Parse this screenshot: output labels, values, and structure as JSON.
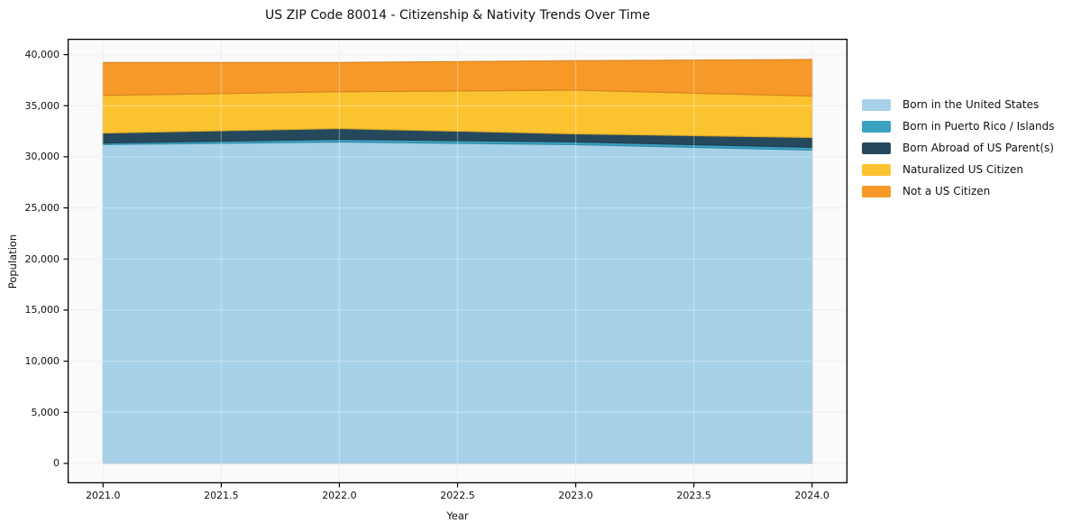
{
  "chart_data": {
    "type": "area",
    "stacked": true,
    "title": "US ZIP Code 80014 - Citizenship & Nativity Trends Over Time",
    "xlabel": "Year",
    "ylabel": "Population",
    "x": [
      2021,
      2022,
      2023,
      2024
    ],
    "series": [
      {
        "name": "Born in the United States",
        "color": "#a6d1e8",
        "values": [
          31200,
          31450,
          31190,
          30660
        ]
      },
      {
        "name": "Born in Puerto Rico / Islands",
        "color": "#3ba1c1",
        "values": [
          150,
          260,
          265,
          265
        ]
      },
      {
        "name": "Born Abroad of US Parent(s)",
        "color": "#26485c",
        "values": [
          980,
          1060,
          795,
          970
        ]
      },
      {
        "name": "Naturalized US Citizen",
        "color": "#fcc330",
        "values": [
          3680,
          3600,
          4270,
          4040
        ]
      },
      {
        "name": "Not a US Citizen",
        "color": "#f79928",
        "values": [
          3210,
          2860,
          2890,
          3590
        ]
      }
    ],
    "totals": [
      39220,
      39230,
      39410,
      39525
    ],
    "xlim": [
      2020.85,
      2024.15
    ],
    "ylim": [
      -1950,
      41550
    ],
    "xticks": {
      "values": [
        2021.0,
        2021.5,
        2022.0,
        2022.5,
        2023.0,
        2023.5,
        2024.0
      ],
      "labels": [
        "2021.0",
        "2021.5",
        "2022.0",
        "2022.5",
        "2023.0",
        "2023.5",
        "2024.0"
      ]
    },
    "yticks": {
      "values": [
        0,
        5000,
        10000,
        15000,
        20000,
        25000,
        30000,
        35000,
        40000
      ],
      "labels": [
        "0",
        "5,000",
        "10,000",
        "15,000",
        "20,000",
        "25,000",
        "30,000",
        "35,000",
        "40,000"
      ]
    },
    "grid": true,
    "legend_position": "right-of-plot",
    "style": {
      "plot_background": "#fafafa",
      "gridline_color": "#e7e7e7",
      "spine_color": "#000000",
      "text_color": "#111111"
    }
  }
}
